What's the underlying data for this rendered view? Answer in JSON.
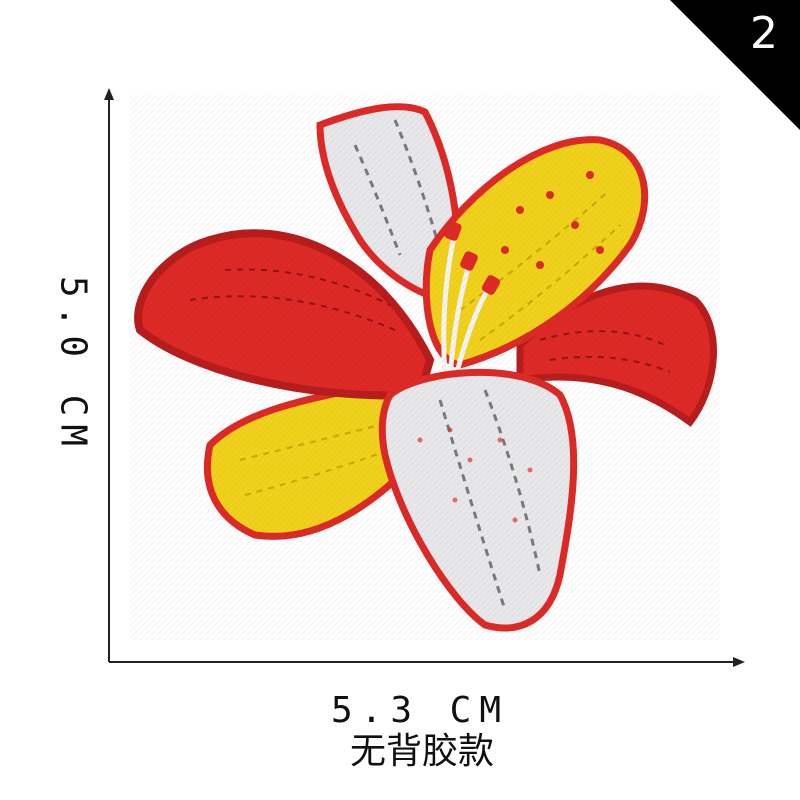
{
  "badge": {
    "number": "2",
    "color": "#000000"
  },
  "dimensions": {
    "height_label": "5.0 CM",
    "width_label": "5.3 CM"
  },
  "caption": "无背胶款",
  "colors": {
    "red": "#de2a26",
    "red_border": "#b81d1e",
    "yellow": "#f0d21c",
    "yellow_border": "#e3b70d",
    "white": "#e8e8ea",
    "stitch": "#7a7a7a"
  }
}
